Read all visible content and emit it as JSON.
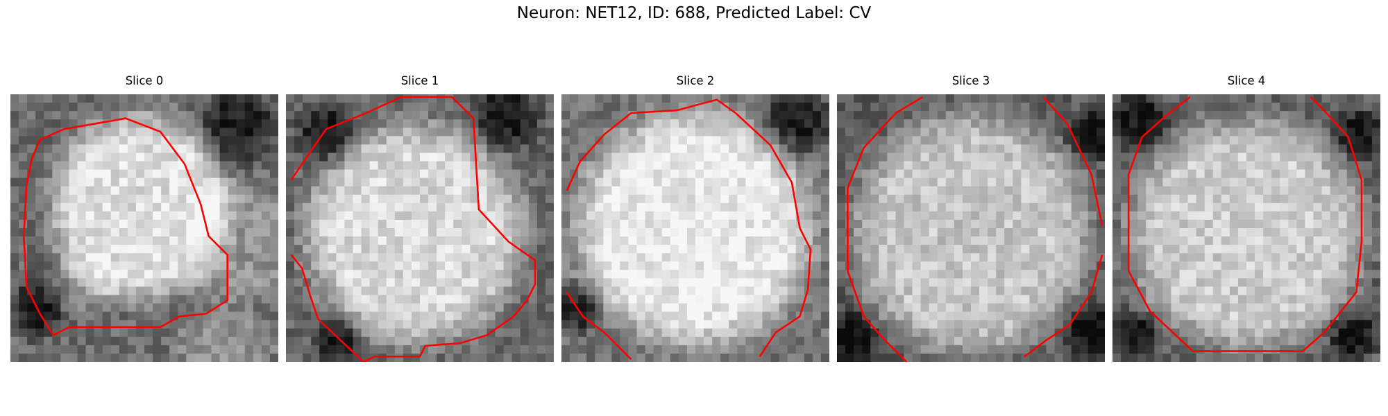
{
  "figure": {
    "title": "Neuron: NET12, ID: 688, Predicted Label: CV",
    "contour_color": "#ff0000",
    "panels": [
      {
        "title": "Slice 0"
      },
      {
        "title": "Slice 1"
      },
      {
        "title": "Slice 2"
      },
      {
        "title": "Slice 3"
      },
      {
        "title": "Slice 4"
      }
    ]
  }
}
